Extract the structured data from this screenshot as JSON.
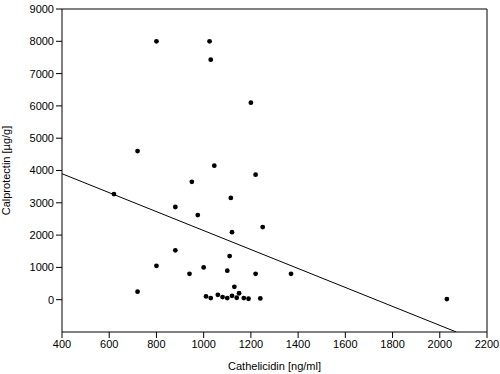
{
  "chart_data": {
    "type": "scatter",
    "x_label": "Cathelicidin [ng/ml]",
    "y_label": "Calprotectin [µg/g]",
    "x": [
      620,
      720,
      720,
      800,
      800,
      880,
      880,
      940,
      950,
      975,
      1000,
      1010,
      1025,
      1030,
      1030,
      1045,
      1060,
      1080,
      1100,
      1100,
      1110,
      1115,
      1120,
      1120,
      1130,
      1140,
      1150,
      1170,
      1190,
      1200,
      1220,
      1220,
      1240,
      1250,
      1370,
      2030
    ],
    "values": [
      3270,
      4600,
      250,
      8000,
      1050,
      2870,
      1530,
      800,
      3650,
      2620,
      1000,
      100,
      8000,
      7430,
      50,
      4150,
      150,
      80,
      900,
      50,
      1350,
      3150,
      2090,
      120,
      400,
      60,
      200,
      50,
      30,
      6100,
      3870,
      800,
      40,
      2250,
      800,
      20
    ],
    "color": "#000000",
    "marker": "circle",
    "fit": {
      "type": "line",
      "x": [
        400,
        2070
      ],
      "values": [
        3900,
        -1000
      ],
      "color": "#000000",
      "line_style": "solid"
    },
    "xlim": [
      400,
      2200
    ],
    "xticks": [
      400,
      600,
      800,
      1000,
      1200,
      1400,
      1600,
      1800,
      2000,
      2200
    ],
    "ylim": [
      -1000,
      9000
    ],
    "yticks": [
      0,
      1000,
      2000,
      3000,
      4000,
      5000,
      6000,
      7000,
      8000,
      9000
    ],
    "grid": false
  }
}
